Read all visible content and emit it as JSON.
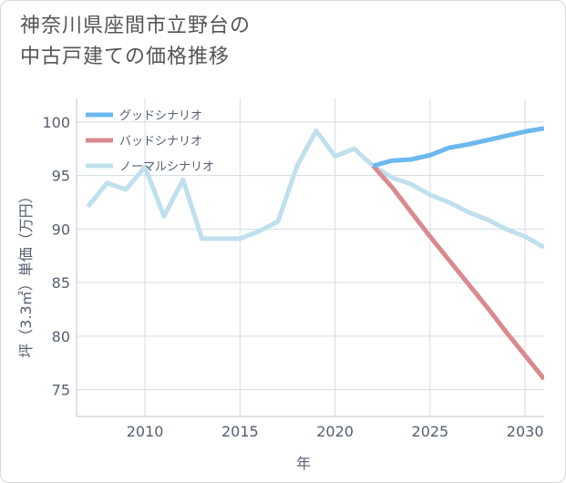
{
  "title_line1": "神奈川県座間市立野台の",
  "title_line2": "中古戸建ての価格推移",
  "chart_data": {
    "type": "line",
    "xlabel": "年",
    "ylabel": "坪（3.3㎡）単価（万円）",
    "xlim": [
      2006.4,
      2031
    ],
    "ylim": [
      72.5,
      102.2
    ],
    "x_ticks": [
      2010,
      2015,
      2020,
      2025,
      2030
    ],
    "y_ticks": [
      75,
      80,
      85,
      90,
      95,
      100
    ],
    "grid": true,
    "legend_position": "top-left",
    "series": [
      {
        "name": "グッドシナリオ",
        "color": "#6cb8ef",
        "x": [
          2022,
          2023,
          2024,
          2025,
          2026,
          2027,
          2028,
          2029,
          2030,
          2031
        ],
        "values": [
          95.9,
          96.4,
          96.5,
          96.9,
          97.6,
          97.9,
          98.3,
          98.7,
          99.1,
          99.4
        ]
      },
      {
        "name": "バッドシナリオ",
        "color": "#d98a90",
        "x": [
          2022,
          2023,
          2024,
          2025,
          2026,
          2027,
          2028,
          2029,
          2030,
          2031
        ],
        "values": [
          95.9,
          93.9,
          91.6,
          89.3,
          87.1,
          84.9,
          82.7,
          80.4,
          78.2,
          76.0
        ]
      },
      {
        "name": "ノーマルシナリオ",
        "color": "#bfe0ec",
        "x": [
          2007,
          2008,
          2009,
          2010,
          2011,
          2012,
          2013,
          2014,
          2015,
          2016,
          2017,
          2018,
          2019,
          2020,
          2021,
          2022,
          2023,
          2024,
          2025,
          2026,
          2027,
          2028,
          2029,
          2030,
          2031
        ],
        "values": [
          92.1,
          94.3,
          93.7,
          95.8,
          91.2,
          94.6,
          89.1,
          89.1,
          89.1,
          89.8,
          90.7,
          95.9,
          99.2,
          96.8,
          97.5,
          95.9,
          94.8,
          94.2,
          93.2,
          92.5,
          91.6,
          90.9,
          90.0,
          89.3,
          88.3
        ]
      }
    ]
  }
}
